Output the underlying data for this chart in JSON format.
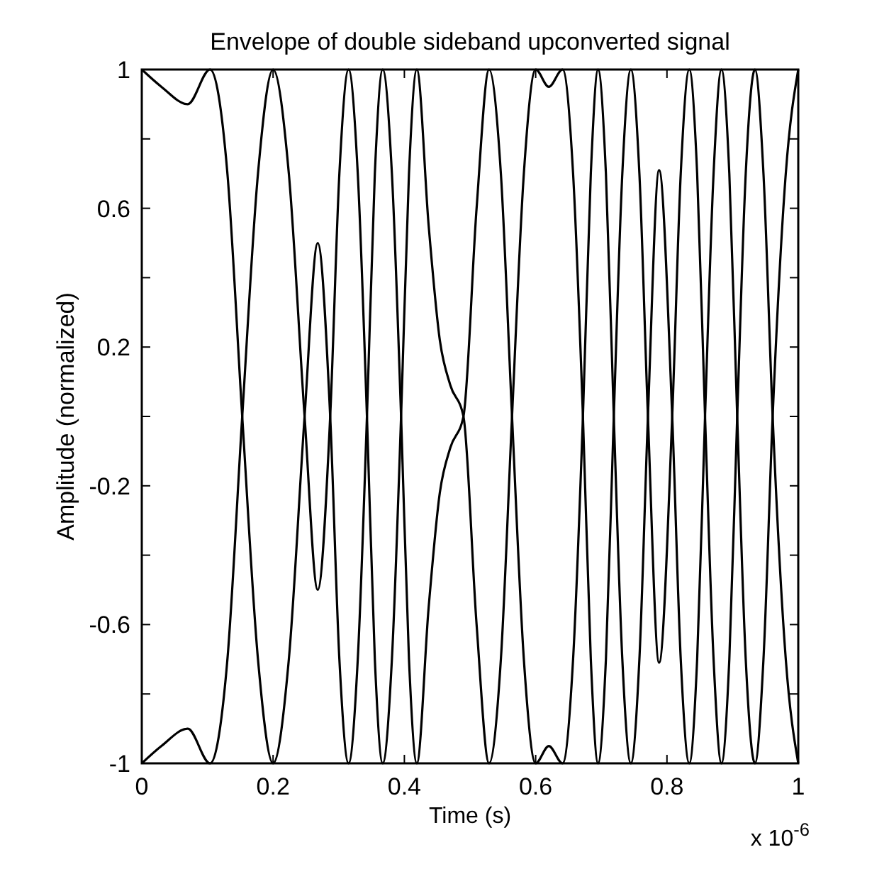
{
  "chart_data": {
    "type": "line",
    "title": "Envelope of double sideband upconverted signal",
    "xlabel": "Time (s)",
    "ylabel": "Amplitude (normalized)",
    "x": [
      0,
      0.03,
      0.07,
      0.104,
      0.13,
      0.153,
      0.177,
      0.2,
      0.224,
      0.248,
      0.268,
      0.287,
      0.301,
      0.315,
      0.329,
      0.343,
      0.355,
      0.367,
      0.381,
      0.395,
      0.407,
      0.419,
      0.437,
      0.454,
      0.47,
      0.49,
      0.51,
      0.529,
      0.547,
      0.564,
      0.582,
      0.6,
      0.62,
      0.641,
      0.657,
      0.672,
      0.684,
      0.695,
      0.707,
      0.719,
      0.732,
      0.745,
      0.758,
      0.771,
      0.788,
      0.808,
      0.821,
      0.834,
      0.846,
      0.858,
      0.871,
      0.883,
      0.895,
      0.907,
      0.92,
      0.934,
      0.947,
      0.961,
      0.981,
      1
    ],
    "series": [
      {
        "color": "#000000",
        "values": [
          1,
          0.95,
          0.9,
          1,
          0.71,
          0,
          -0.7,
          -1,
          -0.7,
          0,
          0.5,
          0,
          -0.7,
          -1,
          -0.7,
          0,
          0.7,
          1,
          0.7,
          0,
          -0.7,
          -1,
          -0.55,
          -0.22,
          -0.09,
          0,
          0.6,
          1,
          0.7,
          0,
          -0.7,
          -1,
          -0.95,
          -1,
          -0.7,
          0,
          0.7,
          1,
          0.7,
          0,
          -0.7,
          -1,
          -0.7,
          0,
          0.71,
          0,
          -0.7,
          -1,
          -0.7,
          0,
          0.7,
          1,
          0.7,
          0,
          -0.7,
          -1,
          -0.7,
          0,
          0.7,
          1
        ]
      },
      {
        "color": "#000000",
        "values": [
          -1,
          -0.95,
          -0.9,
          -1,
          -0.71,
          0,
          0.7,
          1,
          0.7,
          0,
          -0.5,
          0,
          0.7,
          1,
          0.7,
          0,
          -0.7,
          -1,
          -0.7,
          0,
          0.7,
          1,
          0.55,
          0.22,
          0.09,
          0,
          -0.6,
          -1,
          -0.7,
          0,
          0.7,
          1,
          0.95,
          1,
          0.7,
          0,
          -0.7,
          -1,
          -0.7,
          0,
          0.7,
          1,
          0.7,
          0,
          -0.71,
          0,
          0.7,
          1,
          0.7,
          0,
          -0.7,
          -1,
          -0.7,
          0,
          0.7,
          1,
          0.7,
          0,
          -0.7,
          -1
        ]
      }
    ],
    "xlim": [
      0,
      1
    ],
    "xticks": [
      0,
      0.2,
      0.4,
      0.6,
      0.8,
      1
    ],
    "ylim": [
      -1,
      1
    ],
    "yticks": [
      -1,
      {
        "value": -0.8,
        "label": null
      },
      -0.6,
      {
        "value": -0.4,
        "label": null
      },
      -0.2,
      {
        "value": 0,
        "label": null
      },
      0.2,
      {
        "value": 0.4,
        "label": null
      },
      0.6,
      {
        "value": 0.8,
        "label": null
      },
      1
    ],
    "annotations": [
      "x 10$^{-6}$"
    ],
    "line_style": "solid"
  }
}
